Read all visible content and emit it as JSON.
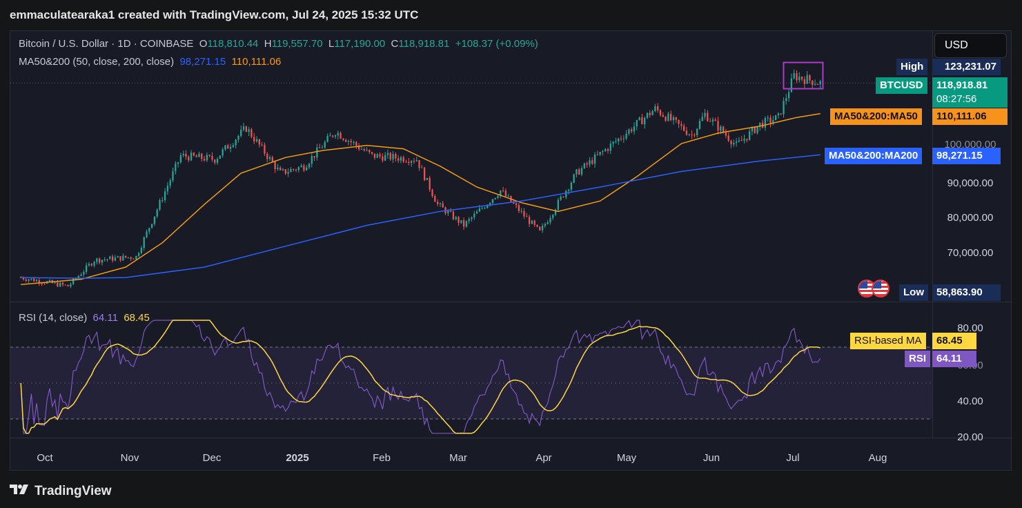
{
  "header": {
    "credit": "emmaculatearaka1 created with TradingView.com, Jul 24, 2025 15:32 UTC"
  },
  "symbol": {
    "name": "Bitcoin / U.S. Dollar · 1D · COINBASE",
    "open_label": "O",
    "open": "118,810.44",
    "high_label": "H",
    "high": "119,557.70",
    "low_label": "L",
    "low": "117,190.00",
    "close_label": "C",
    "close": "118,918.81",
    "change": "+108.37 (+0.09%)"
  },
  "ma_indicator": {
    "label": "MA50&200 (50, close, 200, close)",
    "ma200_value": "98,271.15",
    "ma50_value": "110,111.06"
  },
  "rsi_indicator": {
    "label": "RSI (14, close)",
    "rsi_value": "64.11",
    "rsi_ma_value": "68.45"
  },
  "currency_button": "USD",
  "price_axis": {
    "ticks": [
      "90,000.00",
      "80,000.00",
      "70,000.00"
    ],
    "hidden_tick": "100,000.00",
    "high_label": "High",
    "high_value": "123,231.07",
    "symbol_tag": "BTCUSD",
    "last_price": "118,918.81",
    "countdown": "08:27:56",
    "ma50_tag": "MA50&200:MA50",
    "ma50_value": "110,111.06",
    "ma200_tag": "MA50&200:MA200",
    "ma200_value": "98,271.15",
    "low_label": "Low",
    "low_value": "58,863.90"
  },
  "rsi_axis": {
    "ticks": [
      "80.00",
      "40.00",
      "20.00"
    ],
    "hidden_tick": "60.00",
    "rsi_ma_tag": "RSI-based MA",
    "rsi_ma_value": "68.45",
    "rsi_tag": "RSI",
    "rsi_value": "64.11"
  },
  "time_axis": [
    "Oct",
    "Nov",
    "Dec",
    "2025",
    "Feb",
    "Mar",
    "Apr",
    "May",
    "Jun",
    "Jul",
    "Aug"
  ],
  "footer": {
    "brand": "TradingView"
  },
  "colors": {
    "up": "#26a69a",
    "down": "#ef5350",
    "ma50": "#f39c12",
    "ma200": "#2962ff",
    "rsi": "#7e57c2",
    "rsi_ma": "#ffd740",
    "highlight_box": "#b03ac8"
  },
  "chart_data": {
    "type": "candlestick",
    "title": "Bitcoin / U.S. Dollar · 1D · COINBASE",
    "ylim": [
      55000,
      127000
    ],
    "series": [
      {
        "name": "MA50",
        "points": [
          [
            "2024-09-22",
            61000
          ],
          [
            "2024-10-15",
            62500
          ],
          [
            "2024-11-01",
            66000
          ],
          [
            "2024-11-15",
            73000
          ],
          [
            "2024-12-01",
            84000
          ],
          [
            "2024-12-15",
            93000
          ],
          [
            "2025-01-01",
            97500
          ],
          [
            "2025-01-15",
            99500
          ],
          [
            "2025-02-01",
            101000
          ],
          [
            "2025-02-15",
            100000
          ],
          [
            "2025-03-01",
            95000
          ],
          [
            "2025-03-15",
            89000
          ],
          [
            "2025-04-01",
            84500
          ],
          [
            "2025-04-15",
            82000
          ],
          [
            "2025-05-01",
            85000
          ],
          [
            "2025-05-15",
            92000
          ],
          [
            "2025-06-01",
            101500
          ],
          [
            "2025-06-15",
            104500
          ],
          [
            "2025-07-01",
            106500
          ],
          [
            "2025-07-15",
            109000
          ],
          [
            "2025-07-24",
            110111.06
          ]
        ]
      },
      {
        "name": "MA200",
        "points": [
          [
            "2024-09-22",
            63000
          ],
          [
            "2024-10-15",
            62800
          ],
          [
            "2024-11-01",
            63000
          ],
          [
            "2024-12-01",
            66000
          ],
          [
            "2025-01-01",
            72000
          ],
          [
            "2025-02-01",
            78000
          ],
          [
            "2025-03-01",
            82000
          ],
          [
            "2025-04-01",
            85000
          ],
          [
            "2025-05-01",
            89000
          ],
          [
            "2025-06-01",
            93500
          ],
          [
            "2025-07-01",
            96500
          ],
          [
            "2025-07-24",
            98271.15
          ]
        ]
      }
    ],
    "candles_key_points": [
      [
        "2024-09-22",
        63000
      ],
      [
        "2024-10-10",
        60500
      ],
      [
        "2024-10-20",
        68000
      ],
      [
        "2024-11-05",
        69000
      ],
      [
        "2024-11-22",
        98000
      ],
      [
        "2024-12-05",
        97000
      ],
      [
        "2024-12-17",
        106000
      ],
      [
        "2024-12-30",
        93000
      ],
      [
        "2025-01-08",
        95000
      ],
      [
        "2025-01-20",
        105000
      ],
      [
        "2025-02-03",
        98000
      ],
      [
        "2025-02-20",
        97000
      ],
      [
        "2025-02-28",
        84000
      ],
      [
        "2025-03-10",
        78000
      ],
      [
        "2025-03-24",
        88000
      ],
      [
        "2025-04-08",
        76000
      ],
      [
        "2025-04-22",
        93000
      ],
      [
        "2025-05-10",
        104000
      ],
      [
        "2025-05-22",
        111500
      ],
      [
        "2025-06-05",
        104000
      ],
      [
        "2025-06-10",
        110000
      ],
      [
        "2025-06-22",
        101000
      ],
      [
        "2025-07-01",
        107000
      ],
      [
        "2025-07-08",
        109000
      ],
      [
        "2025-07-14",
        121000
      ],
      [
        "2025-07-24",
        118918.81
      ]
    ],
    "high": 123231.07,
    "low": 58863.9,
    "rsi": {
      "ylim": [
        20,
        85
      ],
      "bands": [
        30,
        70
      ],
      "last": 64.11,
      "ma_last": 68.45
    }
  }
}
